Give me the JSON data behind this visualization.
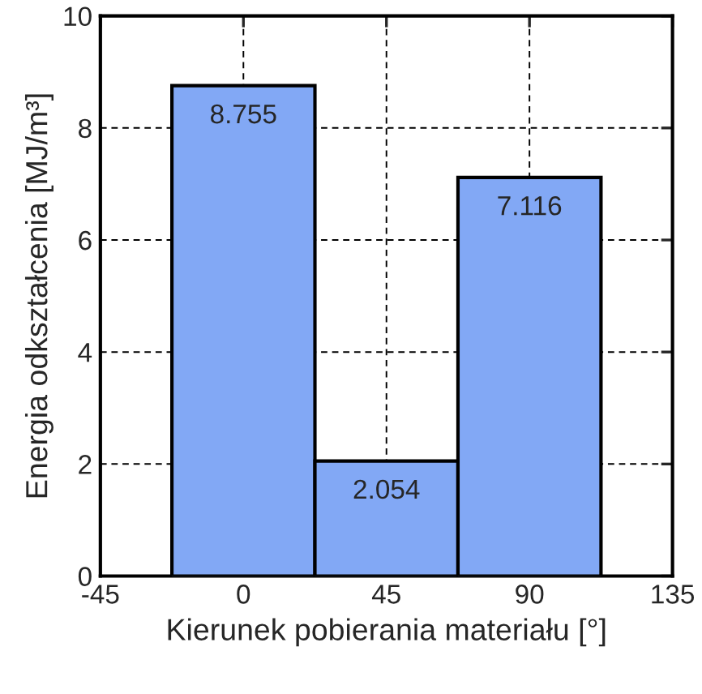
{
  "chart_data": {
    "type": "bar",
    "xlabel": "Kierunek pobierania materiału [°]",
    "ylabel": "Energia odkształcenia [MJ/m³]",
    "x": [
      0,
      45,
      90
    ],
    "values": [
      8.755,
      2.054,
      7.116
    ],
    "color": "#82a8f5",
    "data_labels": true,
    "xlim": [
      -45,
      135
    ],
    "xticks": [
      -45,
      0,
      45,
      90,
      135
    ],
    "ylim": [
      0,
      10
    ],
    "yticks": [
      0,
      2,
      4,
      6,
      8,
      10
    ],
    "grid": true,
    "line_style": "dashed"
  }
}
